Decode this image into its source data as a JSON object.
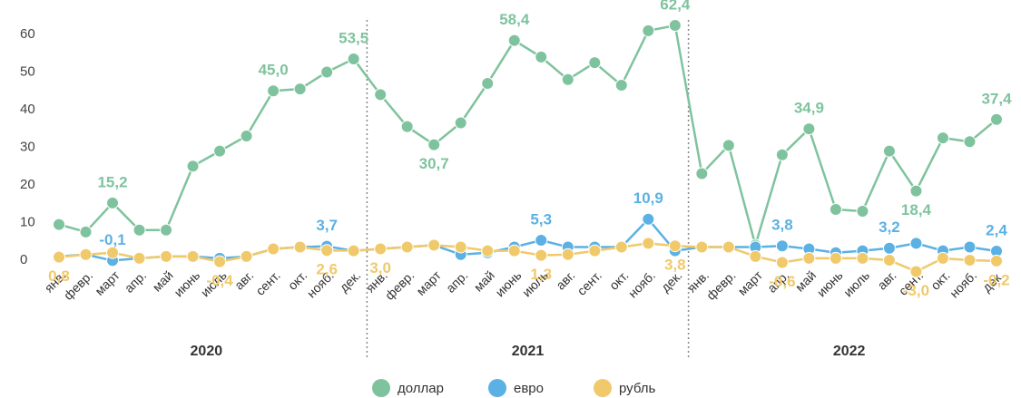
{
  "chart_data": {
    "type": "line",
    "categories": [
      "янв.",
      "февр.",
      "март",
      "апр.",
      "май",
      "июнь",
      "июль",
      "авг.",
      "сент.",
      "окт.",
      "нояб.",
      "дек.",
      "янв.",
      "февр.",
      "март",
      "апр.",
      "май",
      "июнь",
      "июль",
      "авг.",
      "сент.",
      "окт.",
      "нояб.",
      "дек.",
      "янв.",
      "февр.",
      "март",
      "апр.",
      "май",
      "июнь",
      "июль",
      "авг.",
      "сент.",
      "окт.",
      "нояб.",
      "дек."
    ],
    "groups": [
      "2020",
      "2021",
      "2022"
    ],
    "series": [
      {
        "name": "доллар",
        "color": "#7fc39e",
        "values": [
          9.5,
          7.5,
          15.2,
          8,
          8,
          25,
          29,
          33,
          45.0,
          45.5,
          50,
          53.5,
          44,
          35.5,
          30.7,
          36.5,
          47,
          58.4,
          54,
          48,
          52.5,
          46.5,
          61,
          62.4,
          23,
          30.5,
          4,
          28,
          34.9,
          13.5,
          13,
          29,
          18.4,
          32.5,
          31.5,
          37.4
        ],
        "value_labels": [
          null,
          null,
          "15,2",
          null,
          null,
          null,
          null,
          null,
          "45,0",
          null,
          null,
          "53,5",
          null,
          null,
          "30,7",
          null,
          null,
          "58,4",
          null,
          null,
          null,
          null,
          null,
          "62,4",
          null,
          null,
          null,
          null,
          "34,9",
          null,
          null,
          null,
          "18,4",
          null,
          null,
          "37,4"
        ]
      },
      {
        "name": "евро",
        "color": "#5bb1e3",
        "values": [
          1,
          1.5,
          -0.1,
          0.5,
          1,
          1,
          0.5,
          1,
          3,
          3.5,
          3.7,
          2.5,
          3,
          3.5,
          4,
          1.5,
          2,
          3.5,
          5.3,
          3.5,
          3.5,
          3.5,
          10.9,
          2.5,
          3.5,
          3.5,
          3.5,
          3.8,
          3,
          2,
          2.5,
          3.2,
          4.5,
          2.5,
          3.5,
          2.4
        ],
        "value_labels": [
          null,
          null,
          "-0,1",
          null,
          null,
          null,
          null,
          null,
          null,
          null,
          "3,7",
          null,
          null,
          null,
          null,
          null,
          null,
          null,
          "5,3",
          null,
          null,
          null,
          "10,9",
          null,
          null,
          null,
          null,
          "3,8",
          null,
          null,
          null,
          "3,2",
          null,
          null,
          null,
          "2,4"
        ]
      },
      {
        "name": "рубль",
        "color": "#f0c96b",
        "values": [
          0.8,
          1.5,
          2,
          0.5,
          1,
          1,
          -0.4,
          1,
          3,
          3.5,
          2.6,
          2.5,
          3.0,
          3.5,
          4,
          3.5,
          2.5,
          2.5,
          1.3,
          1.5,
          2.5,
          3.5,
          4.5,
          3.8,
          3.5,
          3.5,
          1,
          -0.6,
          0.5,
          0.5,
          0.5,
          0,
          -3.0,
          0.5,
          0,
          -0.2
        ],
        "value_labels": [
          "0,8",
          null,
          null,
          null,
          null,
          null,
          "-0,4",
          null,
          null,
          null,
          "2,6",
          null,
          "3,0",
          null,
          null,
          null,
          null,
          null,
          "1,3",
          null,
          null,
          null,
          null,
          "3,8",
          null,
          null,
          null,
          "-0,6",
          null,
          null,
          null,
          null,
          "-3,0",
          null,
          null,
          "-0,2"
        ]
      }
    ],
    "ylim": [
      -5,
      65
    ],
    "yticks": [
      0,
      10,
      20,
      30,
      40,
      50,
      60
    ],
    "grid": false
  }
}
